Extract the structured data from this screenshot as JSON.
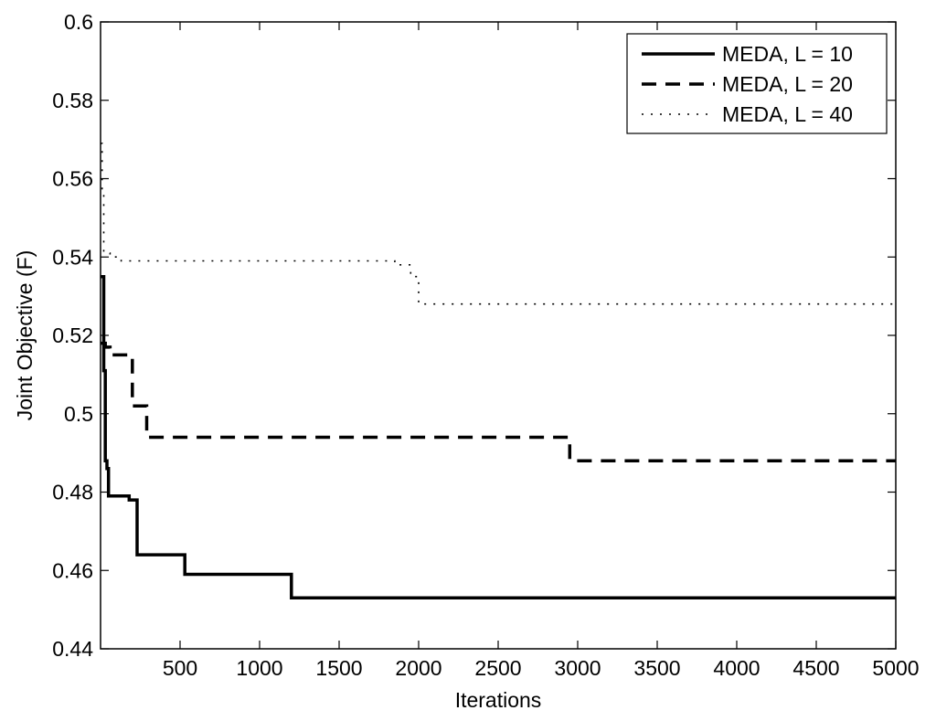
{
  "chart_data": {
    "type": "line",
    "title": "",
    "xlabel": "Iterations",
    "ylabel": "Joint Objective (F)",
    "xlim": [
      0,
      5000
    ],
    "ylim": [
      0.44,
      0.6
    ],
    "xticks": [
      500,
      1000,
      1500,
      2000,
      2500,
      3000,
      3500,
      4000,
      4500,
      5000
    ],
    "xtick_labels": [
      "500",
      "1000",
      "1500",
      "2000",
      "2500",
      "3000",
      "3500",
      "4000",
      "4500",
      "5000"
    ],
    "yticks": [
      0.44,
      0.46,
      0.48,
      0.5,
      0.52,
      0.54,
      0.56,
      0.58,
      0.6
    ],
    "ytick_labels": [
      "0.44",
      "0.46",
      "0.48",
      "0.5",
      "0.52",
      "0.54",
      "0.56",
      "0.58",
      "0.6"
    ],
    "grid": false,
    "legend_position": "top-right",
    "series": [
      {
        "name": "MEDA, L = 10",
        "style": "solid",
        "color": "#000000",
        "x": [
          0,
          20,
          30,
          40,
          50,
          60,
          180,
          230,
          530,
          1200,
          5000
        ],
        "y": [
          0.535,
          0.511,
          0.488,
          0.486,
          0.479,
          0.479,
          0.478,
          0.464,
          0.459,
          0.453,
          0.453
        ]
      },
      {
        "name": "MEDA, L = 20",
        "style": "dashed",
        "color": "#000000",
        "x": [
          0,
          30,
          60,
          150,
          200,
          290,
          2550,
          2950,
          5000
        ],
        "y": [
          0.518,
          0.517,
          0.515,
          0.515,
          0.502,
          0.494,
          0.494,
          0.488,
          0.488
        ]
      },
      {
        "name": "MEDA, L = 40",
        "style": "dotted",
        "color": "#000000",
        "x": [
          0,
          10,
          20,
          60,
          130,
          1400,
          1850,
          1950,
          2000,
          5000
        ],
        "y": [
          0.569,
          0.556,
          0.541,
          0.54,
          0.539,
          0.539,
          0.538,
          0.535,
          0.528,
          0.528
        ]
      }
    ]
  }
}
